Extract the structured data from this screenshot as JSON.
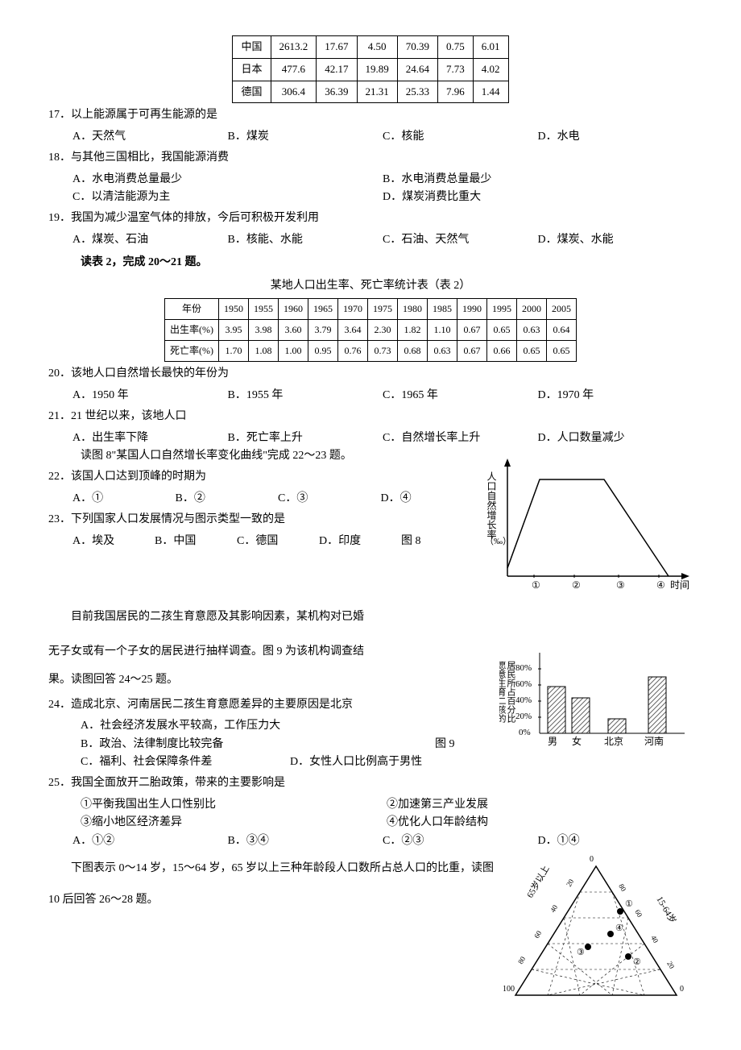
{
  "table1": {
    "rows": [
      [
        "中国",
        "2613.2",
        "17.67",
        "4.50",
        "70.39",
        "0.75",
        "6.01"
      ],
      [
        "日本",
        "477.6",
        "42.17",
        "19.89",
        "24.64",
        "7.73",
        "4.02"
      ],
      [
        "德国",
        "306.4",
        "36.39",
        "21.31",
        "25.33",
        "7.96",
        "1.44"
      ]
    ]
  },
  "q17": {
    "stem": "17．以上能源属于可再生能源的是",
    "opts": [
      "A．天然气",
      "B．煤炭",
      "C．核能",
      "D．水电"
    ]
  },
  "q18": {
    "stem": "18．与其他三国相比，我国能源消费",
    "opts": [
      "A．水电消费总量最少",
      "B．水电消费总量最少",
      "C．以清洁能源为主",
      "D．煤炭消费比重大"
    ],
    "opts_a": "A．水电消费总量最少",
    "opts_b": "B．水电消费总量最少",
    "opts_c": "C．以清洁能源为主",
    "opts_d": "D．煤炭消费比重大"
  },
  "q19": {
    "stem": "19．我国为减少温室气体的排放，今后可积极开发利用",
    "opts": [
      "A．煤炭、石油",
      "B．核能、水能",
      "C．石油、天然气",
      "D．煤炭、水能"
    ]
  },
  "lead2": "读表 2，完成 20～21 题。",
  "table2": {
    "title": "某地人口出生率、死亡率统计表（表 2）",
    "header": [
      "年份",
      "1950",
      "1955",
      "1960",
      "1965",
      "1970",
      "1975",
      "1980",
      "1985",
      "1990",
      "1995",
      "2000",
      "2005"
    ],
    "rows": [
      [
        "出生率(%)",
        "3.95",
        "3.98",
        "3.60",
        "3.79",
        "3.64",
        "2.30",
        "1.82",
        "1.10",
        "0.67",
        "0.65",
        "0.63",
        "0.64"
      ],
      [
        "死亡率(%)",
        "1.70",
        "1.08",
        "1.00",
        "0.95",
        "0.76",
        "0.73",
        "0.68",
        "0.63",
        "0.67",
        "0.66",
        "0.65",
        "0.65"
      ]
    ]
  },
  "q20": {
    "stem": "20．该地人口自然增长最快的年份为",
    "opts": [
      "A．1950 年",
      "B．1955 年",
      "C．1965 年",
      "D．1970 年"
    ]
  },
  "q21": {
    "stem": "21．21 世纪以来，该地人口",
    "opts": [
      "A．出生率下降",
      "B．死亡率上升",
      "C．自然增长率上升",
      "D．人口数量减少"
    ]
  },
  "lead3": "读图 8\"某国人口自然增长率变化曲线\"完成 22～23 题。",
  "q22": {
    "stem": "22．该国人口达到顶峰的时期为",
    "opts": [
      "A．①",
      "B．②",
      "C．③",
      "D．④"
    ]
  },
  "q23": {
    "stem": "23．下列国家人口发展情况与图示类型一致的是",
    "opts": [
      "A．埃及",
      "B．中国",
      "C．德国",
      "D．印度"
    ]
  },
  "fig8": {
    "label": "图 8",
    "ylabel": "人口自然增长率",
    "yunit": "（‰）",
    "xlabel": "时间",
    "ticks": [
      "①",
      "②",
      "③",
      "④"
    ],
    "line_color": "#000",
    "bg": "#fff",
    "curve": [
      [
        30,
        150
      ],
      [
        70,
        40
      ],
      [
        150,
        40
      ],
      [
        230,
        160
      ]
    ]
  },
  "lead4_a": "目前我国居民的二孩生育意愿及其影响因素，某机构对已婚",
  "lead4_b": "无子女或有一个子女的居民进行抽样调查。图 9 为该机构调查结",
  "lead4_c": "果。读图回答 24～25 题。",
  "q24": {
    "stem": "24．造成北京、河南居民二孩生育意愿差异的主要原因是北京",
    "opts": [
      "A．社会经济发展水平较高，工作压力大",
      "B．政治、法律制度比较完备",
      "C．福利、社会保障条件差",
      "D．女性人口比例高于男性"
    ]
  },
  "q25": {
    "stem": "25．我国全面放开二胎政策，带来的主要影响是",
    "sub": [
      "①平衡我国出生人口性别比",
      "②加速第三产业发展",
      "③缩小地区经济差异",
      "④优化人口年龄结构"
    ],
    "opts": [
      "A．①②",
      "B．③④",
      "C．②③",
      "D．①④"
    ]
  },
  "fig9": {
    "label": "图 9",
    "ylabel_a": "愿意生育二孩的",
    "ylabel_b": "居民所占百分比",
    "yticks": [
      "0%",
      "20%",
      "40%",
      "60%",
      "80%"
    ],
    "xticks": [
      "男",
      "女",
      "北京",
      "河南"
    ],
    "bars": [
      58,
      44,
      18,
      70
    ],
    "bar_color": "#fff",
    "bar_hatch": "#888",
    "axis_color": "#000"
  },
  "lead5": "下图表示 0～14 岁，15～64 岁，65 岁以上三种年龄段人口数所占总人口的比重，读图",
  "lead5b": "10 后回答 26～28 题。",
  "fig10": {
    "axis_labels": [
      "65岁以上",
      "15-64岁",
      "0-14岁"
    ],
    "ticks": [
      "0",
      "20",
      "40",
      "60",
      "80",
      "100"
    ],
    "marks": [
      "①",
      "②",
      "③",
      "④"
    ],
    "axis_color": "#000",
    "dash_color": "#000",
    "dot_color": "#000"
  }
}
